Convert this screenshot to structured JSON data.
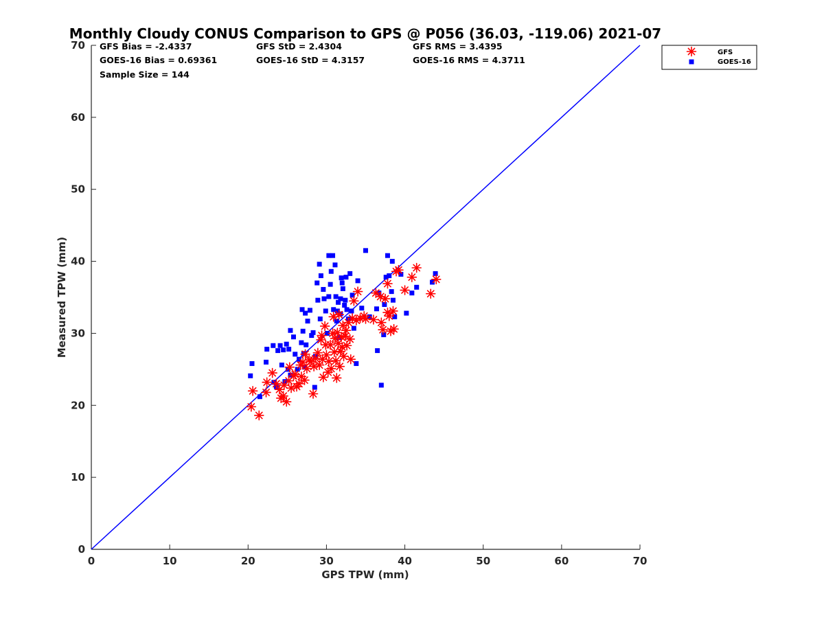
{
  "chart_data": {
    "type": "scatter",
    "title": "Monthly Cloudy CONUS Comparison to GPS @ P056 (36.03, -119.06) 2021-07",
    "xlabel": "GPS TPW (mm)",
    "ylabel": "Measured TPW (mm)",
    "xlim": [
      0,
      70
    ],
    "ylim": [
      0,
      70
    ],
    "xticks": [
      "0",
      "10",
      "20",
      "30",
      "40",
      "50",
      "60",
      "70"
    ],
    "yticks": [
      "0",
      "10",
      "20",
      "30",
      "40",
      "50",
      "60",
      "70"
    ],
    "grid": false,
    "legend_position": "top-right, outside plot",
    "stats": {
      "gfs_bias": "GFS Bias = -2.4337",
      "gfs_std": "GFS StD = 2.4304",
      "gfs_rms": "GFS RMS = 3.4395",
      "goes_bias": "GOES-16 Bias = 0.69361",
      "goes_std": "GOES-16 StD = 4.3157",
      "goes_rms": "GOES-16 RMS = 4.3711",
      "sample_size": "Sample Size = 144"
    },
    "reference_line": {
      "from": [
        0,
        0
      ],
      "to": [
        70,
        70
      ],
      "color": "#0000ff"
    },
    "series": [
      {
        "name": "GFS",
        "marker": "asterisk",
        "color": "#ff0000",
        "points": [
          [
            20.4,
            19.8
          ],
          [
            21.4,
            18.6
          ],
          [
            20.6,
            22.0
          ],
          [
            22.3,
            21.8
          ],
          [
            22.4,
            23.2
          ],
          [
            23.1,
            24.5
          ],
          [
            23.6,
            23.0
          ],
          [
            24.0,
            22.2
          ],
          [
            24.2,
            21.0
          ],
          [
            24.5,
            21.3
          ],
          [
            24.9,
            20.5
          ],
          [
            24.6,
            22.8
          ],
          [
            25.2,
            23.4
          ],
          [
            25.5,
            22.4
          ],
          [
            25.3,
            25.3
          ],
          [
            25.8,
            24.1
          ],
          [
            26.2,
            22.6
          ],
          [
            26.0,
            24.3
          ],
          [
            26.5,
            23.0
          ],
          [
            26.8,
            24.0
          ],
          [
            26.7,
            25.6
          ],
          [
            27.0,
            26.0
          ],
          [
            27.2,
            23.5
          ],
          [
            27.5,
            25.1
          ],
          [
            27.3,
            27.1
          ],
          [
            27.8,
            26.3
          ],
          [
            28.0,
            26.1
          ],
          [
            28.3,
            21.6
          ],
          [
            28.4,
            25.4
          ],
          [
            28.6,
            26.5
          ],
          [
            28.9,
            27.3
          ],
          [
            29.1,
            25.6
          ],
          [
            29.3,
            29.1
          ],
          [
            29.5,
            26.4
          ],
          [
            29.6,
            23.9
          ],
          [
            29.4,
            29.7
          ],
          [
            29.8,
            31.0
          ],
          [
            29.9,
            28.4
          ],
          [
            30.0,
            27.0
          ],
          [
            30.2,
            24.6
          ],
          [
            30.3,
            26.1
          ],
          [
            30.5,
            28.4
          ],
          [
            30.6,
            25.1
          ],
          [
            30.8,
            30.0
          ],
          [
            30.9,
            32.3
          ],
          [
            31.0,
            27.4
          ],
          [
            31.1,
            29.3
          ],
          [
            31.2,
            26.2
          ],
          [
            31.3,
            23.8
          ],
          [
            31.4,
            30.1
          ],
          [
            31.5,
            28.6
          ],
          [
            31.6,
            32.6
          ],
          [
            31.7,
            25.4
          ],
          [
            31.8,
            27.5
          ],
          [
            31.9,
            29.5
          ],
          [
            32.0,
            28.1
          ],
          [
            32.1,
            31.1
          ],
          [
            32.2,
            26.8
          ],
          [
            32.4,
            29.6
          ],
          [
            32.5,
            30.4
          ],
          [
            32.6,
            28.3
          ],
          [
            32.8,
            31.5
          ],
          [
            33.0,
            29.2
          ],
          [
            33.1,
            26.4
          ],
          [
            33.3,
            32.1
          ],
          [
            33.5,
            34.5
          ],
          [
            33.8,
            31.8
          ],
          [
            34.0,
            35.8
          ],
          [
            34.3,
            32.1
          ],
          [
            34.8,
            32.4
          ],
          [
            35.0,
            32.0
          ],
          [
            36.0,
            31.9
          ],
          [
            36.3,
            35.6
          ],
          [
            36.9,
            35.1
          ],
          [
            37.0,
            31.5
          ],
          [
            37.2,
            30.5
          ],
          [
            37.5,
            34.8
          ],
          [
            37.8,
            32.9
          ],
          [
            38.0,
            32.4
          ],
          [
            38.2,
            30.3
          ],
          [
            38.5,
            33.1
          ],
          [
            38.6,
            30.6
          ],
          [
            38.9,
            38.6
          ],
          [
            39.2,
            38.8
          ],
          [
            40.0,
            36.0
          ],
          [
            40.9,
            37.8
          ],
          [
            41.5,
            39.1
          ],
          [
            43.3,
            35.5
          ],
          [
            44.0,
            37.5
          ],
          [
            37.8,
            36.9
          ]
        ]
      },
      {
        "name": "GOES-16",
        "marker": "square",
        "color": "#0000ff",
        "points": [
          [
            20.3,
            24.1
          ],
          [
            20.5,
            25.8
          ],
          [
            21.5,
            21.2
          ],
          [
            22.3,
            26.0
          ],
          [
            22.4,
            27.8
          ],
          [
            23.2,
            28.3
          ],
          [
            23.3,
            23.2
          ],
          [
            23.6,
            22.6
          ],
          [
            23.8,
            27.6
          ],
          [
            24.1,
            28.3
          ],
          [
            24.3,
            25.6
          ],
          [
            24.5,
            27.7
          ],
          [
            24.7,
            23.3
          ],
          [
            24.9,
            28.5
          ],
          [
            25.2,
            27.8
          ],
          [
            25.1,
            25.0
          ],
          [
            25.4,
            24.2
          ],
          [
            25.4,
            30.4
          ],
          [
            25.8,
            29.5
          ],
          [
            26.0,
            27.1
          ],
          [
            26.3,
            25.0
          ],
          [
            26.5,
            26.4
          ],
          [
            26.8,
            28.7
          ],
          [
            27.0,
            30.3
          ],
          [
            27.1,
            27.2
          ],
          [
            27.2,
            25.3
          ],
          [
            27.4,
            28.4
          ],
          [
            26.9,
            33.3
          ],
          [
            27.3,
            32.8
          ],
          [
            27.6,
            31.7
          ],
          [
            27.9,
            33.2
          ],
          [
            28.1,
            29.7
          ],
          [
            28.3,
            30.1
          ],
          [
            28.5,
            22.5
          ],
          [
            28.6,
            26.8
          ],
          [
            28.8,
            37.0
          ],
          [
            28.9,
            34.6
          ],
          [
            29.1,
            39.6
          ],
          [
            29.2,
            32.0
          ],
          [
            29.6,
            36.1
          ],
          [
            29.7,
            34.8
          ],
          [
            29.9,
            33.1
          ],
          [
            30.1,
            30.0
          ],
          [
            30.3,
            35.1
          ],
          [
            30.3,
            40.8
          ],
          [
            30.6,
            38.6
          ],
          [
            30.8,
            40.8
          ],
          [
            30.9,
            33.3
          ],
          [
            31.1,
            39.5
          ],
          [
            31.2,
            35.1
          ],
          [
            31.3,
            31.7
          ],
          [
            31.4,
            33.1
          ],
          [
            31.5,
            34.3
          ],
          [
            31.6,
            29.4
          ],
          [
            31.8,
            34.8
          ],
          [
            31.9,
            37.7
          ],
          [
            32.0,
            37.0
          ],
          [
            32.1,
            36.2
          ],
          [
            32.3,
            33.9
          ],
          [
            32.4,
            34.6
          ],
          [
            32.5,
            37.8
          ],
          [
            32.6,
            33.3
          ],
          [
            32.8,
            32.0
          ],
          [
            33.0,
            38.3
          ],
          [
            33.2,
            33.1
          ],
          [
            33.3,
            35.3
          ],
          [
            33.5,
            30.7
          ],
          [
            33.8,
            25.8
          ],
          [
            34.0,
            37.3
          ],
          [
            34.5,
            33.5
          ],
          [
            35.0,
            41.5
          ],
          [
            35.5,
            32.3
          ],
          [
            36.4,
            33.4
          ],
          [
            36.5,
            27.6
          ],
          [
            36.7,
            35.6
          ],
          [
            37.0,
            22.8
          ],
          [
            37.3,
            29.8
          ],
          [
            37.4,
            34.0
          ],
          [
            37.6,
            37.8
          ],
          [
            37.8,
            40.8
          ],
          [
            38.0,
            38.0
          ],
          [
            38.3,
            35.8
          ],
          [
            38.4,
            40.0
          ],
          [
            38.5,
            34.6
          ],
          [
            38.7,
            32.3
          ],
          [
            39.5,
            38.2
          ],
          [
            40.2,
            32.8
          ],
          [
            40.9,
            35.6
          ],
          [
            41.5,
            36.4
          ],
          [
            43.5,
            37.1
          ],
          [
            43.9,
            38.3
          ],
          [
            30.5,
            36.8
          ],
          [
            31.8,
            32.7
          ],
          [
            29.3,
            38.0
          ]
        ]
      }
    ]
  }
}
